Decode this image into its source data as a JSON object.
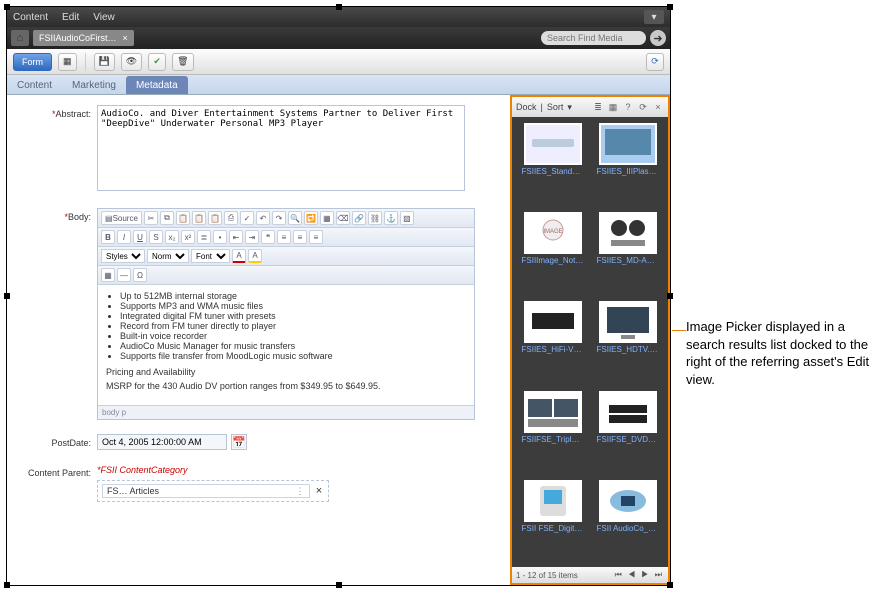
{
  "menu": {
    "content": "Content",
    "edit": "Edit",
    "view": "View"
  },
  "tab": {
    "title": "FSIIAudioCoFirst…"
  },
  "search": {
    "placeholder": "Search Find Media"
  },
  "toolbar": {
    "form": "Form"
  },
  "subtabs": {
    "content": "Content",
    "marketing": "Marketing",
    "metadata": "Metadata"
  },
  "labels": {
    "abstract": "Abstract:",
    "body": "Body:",
    "postdate": "PostDate:",
    "parent": "Content Parent:"
  },
  "abstract": "AudioCo. and Diver Entertainment Systems Partner to Deliver First \"DeepDive\" Underwater Personal MP3 Player",
  "editor": {
    "source": "Source",
    "styles": "Styles",
    "normal": "Norm",
    "font": "Font",
    "bullets": [
      "Up to 512MB internal storage",
      "Supports MP3 and WMA music files",
      "Integrated digital FM tuner with presets",
      "Record from FM tuner directly to player",
      "Built-in voice recorder",
      "AudioCo Music Manager for music transfers",
      "Supports file transfer from MoodLogic music software"
    ],
    "pricing_head": "Pricing and Availability",
    "pricing_body": "MSRP for the 430 Audio DV portion ranges from $349.95 to $649.95.",
    "path": "body p"
  },
  "postdate": "Oct 4, 2005 12:00:00 AM",
  "parent": {
    "heading": "FSII ContentCategory",
    "chip": "FS… Articles"
  },
  "picker": {
    "dock": "Dock",
    "sort": "Sort",
    "items": [
      "FSIIES_Stand…",
      "FSIIES_IIIPlas…",
      "FSIIImage_Not…",
      "FSIIES_MD-Aud…",
      "FSIIES_HiFi-VH…",
      "FSIIES_HDTV.jpg",
      "FSIIFSE_TripleP…",
      "FSIIFSE_DVD-V…",
      "FSII FSE_DigitalA…",
      "FSII AudioCo_JA…"
    ],
    "footer": "1 - 12 of 15 items"
  },
  "callout": "Image Picker displayed in a search results list docked to the right of the referring asset's Edit view.",
  "colors": {
    "accent": "#f08000",
    "link": "#7fb2ff",
    "panel": "#3c3c3c"
  }
}
